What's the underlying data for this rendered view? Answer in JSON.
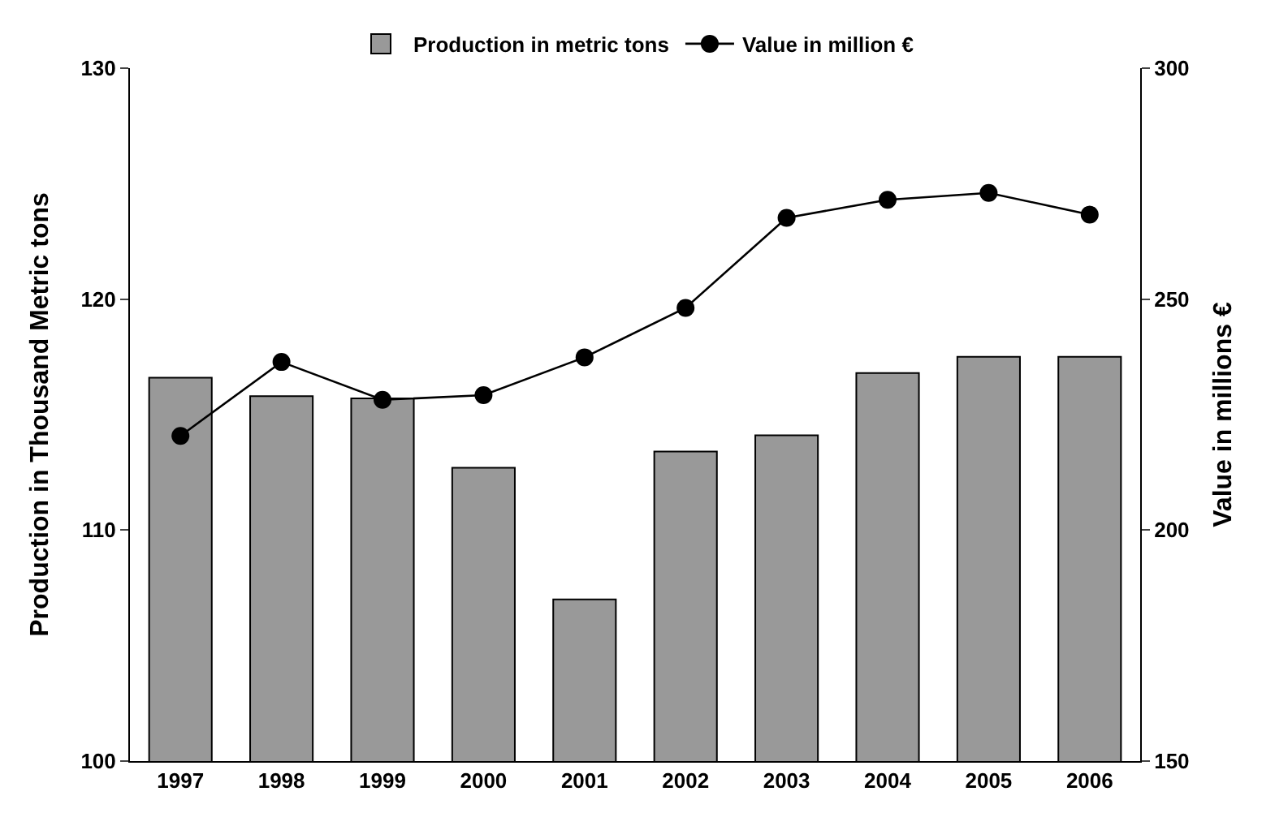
{
  "chart_data": {
    "type": "bar",
    "categories": [
      "1997",
      "1998",
      "1999",
      "2000",
      "2001",
      "2002",
      "2003",
      "2004",
      "2005",
      "2006"
    ],
    "ylabel": "Production in Thousand Metric tons",
    "y2label": "Value in millions €",
    "ylim": [
      100,
      130
    ],
    "yticks": [
      100,
      110,
      120,
      130
    ],
    "y2lim": [
      150,
      300
    ],
    "y2ticks": [
      150,
      200,
      250,
      300
    ],
    "legend": "top",
    "marker": "circle",
    "line_style": "solid",
    "series": [
      {
        "name": "Production in metric tons",
        "color": "#999999",
        "values": [
          116.6,
          115.8,
          115.7,
          112.7,
          107.0,
          113.4,
          114.1,
          116.8,
          117.5,
          117.5
        ]
      },
      {
        "name": "Value in million €",
        "type": "line",
        "axis": "y2",
        "color": "#000000",
        "values": [
          220.4,
          236.4,
          228.2,
          229.2,
          237.4,
          248.1,
          267.6,
          271.5,
          273.0,
          268.3
        ]
      }
    ]
  }
}
